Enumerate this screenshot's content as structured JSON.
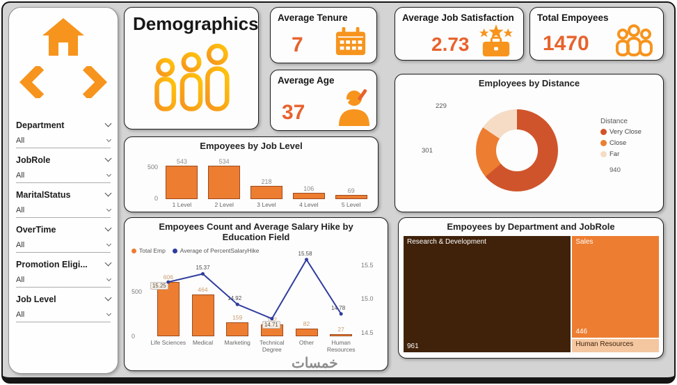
{
  "page": {
    "watermark": "خمسات"
  },
  "header": {
    "title": "Demographics"
  },
  "sidebar": {
    "filters": [
      {
        "label": "Department",
        "value": "All"
      },
      {
        "label": "JobRole",
        "value": "All"
      },
      {
        "label": "MaritalStatus",
        "value": "All"
      },
      {
        "label": "OverTime",
        "value": "All"
      },
      {
        "label": "Promotion Eligi...",
        "value": "All"
      },
      {
        "label": "Job Level",
        "value": "All"
      }
    ]
  },
  "kpis": {
    "tenure": {
      "label": "Average Tenure",
      "value": "7"
    },
    "age": {
      "label": "Average Age",
      "value": "37"
    },
    "satisfaction": {
      "label": "Average Job Satisfaction",
      "value": "2.73"
    },
    "total": {
      "label": "Total Empoyees",
      "value": "1470"
    }
  },
  "colors": {
    "accent": "#ED7D31",
    "value_text": "#E8622D",
    "line": "#2F3C9E",
    "icon": "#F7941D"
  },
  "chart_data": [
    {
      "id": "job_level",
      "type": "bar",
      "title": "Empoyees by Job Level",
      "categories": [
        "1 Level",
        "2 Level",
        "3 Level",
        "4 Level",
        "5 Level"
      ],
      "values": [
        543,
        534,
        218,
        106,
        69
      ],
      "yticks": [
        0,
        500
      ],
      "ylim": [
        0,
        560
      ]
    },
    {
      "id": "distance",
      "type": "pie",
      "title": "Employees by Distance",
      "legend_title": "Distance",
      "categories": [
        "Very Close",
        "Close",
        "Far"
      ],
      "values": [
        940,
        301,
        229
      ],
      "colors": [
        "#D0542B",
        "#ED7D31",
        "#F6DCC5"
      ],
      "legend_position": "right"
    },
    {
      "id": "education",
      "type": "bar",
      "title": "Empoyees Count and Average Salary Hike by Education Field",
      "categories": [
        "Life Sciences",
        "Medical",
        "Marketing",
        "Technical Degree",
        "Other",
        "Human Resources"
      ],
      "series": [
        {
          "name": "Total Emp",
          "type": "bar",
          "values": [
            606,
            464,
            159,
            132,
            82,
            27
          ],
          "color": "#ED7D31"
        },
        {
          "name": "Average of PercentSalaryHike",
          "type": "line",
          "values": [
            15.25,
            15.37,
            14.92,
            14.71,
            15.58,
            14.78
          ],
          "color": "#2F3C9E"
        }
      ],
      "left_axis": {
        "ticks": [
          0,
          500
        ],
        "lim": [
          0,
          870
        ]
      },
      "right_axis": {
        "ticks": [
          14.5,
          15.0,
          15.5
        ],
        "lim": [
          14.45,
          15.6
        ]
      },
      "legend_position": "top-left"
    },
    {
      "id": "treemap",
      "type": "heatmap",
      "title": "Empoyees by Department and JobRole",
      "nodes": [
        {
          "label": "Research & Development",
          "value": "961",
          "color": "#40220A",
          "text_color": "#FFFFFF"
        },
        {
          "label": "Sales",
          "value": "446",
          "color": "#ED7D31",
          "text_color": "#FFFFFF"
        },
        {
          "label": "Human Resources",
          "value": "",
          "color": "#F4C7A1",
          "text_color": "#40220A"
        }
      ]
    }
  ]
}
